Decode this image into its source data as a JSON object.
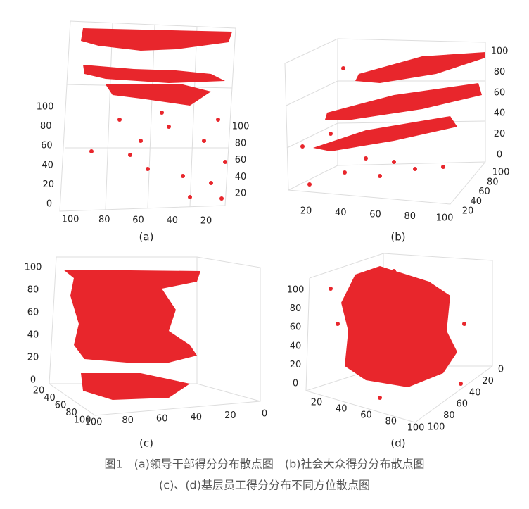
{
  "panels": [
    {
      "label": "(a)",
      "z_ticks": [
        0,
        20,
        40,
        60,
        80,
        100
      ],
      "axis1_ticks": [
        100,
        80,
        60,
        40,
        20
      ],
      "axis2_ticks": [
        20,
        40,
        60,
        80,
        100
      ]
    },
    {
      "label": "(b)",
      "z_ticks": [
        0,
        20,
        40,
        60,
        80,
        100
      ],
      "axis1_ticks": [
        20,
        40,
        60,
        80,
        100
      ],
      "axis2_ticks": [
        20,
        40,
        60,
        80,
        100
      ]
    },
    {
      "label": "(c)",
      "z_ticks": [
        0,
        20,
        40,
        60,
        80,
        100
      ],
      "axis1_ticks": [
        20,
        40,
        60,
        80,
        100
      ],
      "axis2_ticks": [
        100,
        80,
        60,
        40,
        20,
        0
      ]
    },
    {
      "label": "(d)",
      "z_ticks": [
        0,
        20,
        40,
        60,
        80,
        100
      ],
      "axis1_ticks": [
        20,
        40,
        60,
        80,
        100
      ],
      "axis2_ticks": [
        0,
        20,
        40,
        60,
        80,
        100
      ]
    }
  ],
  "caption": {
    "line1": "图1　(a)领导干部得分分布散点图　(b)社会大众得分分布散点图",
    "line2": "(c)、(d)基层员工得分分布不同方位散点图"
  }
}
